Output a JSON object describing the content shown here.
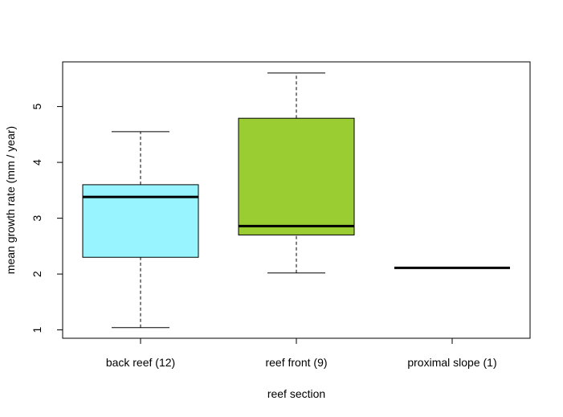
{
  "chart_data": {
    "type": "boxplot",
    "title": "",
    "xlabel": "reef section",
    "ylabel": "mean growth rate (mm / year)",
    "ylim": [
      0.85,
      5.8
    ],
    "yticks": [
      1,
      2,
      3,
      4,
      5
    ],
    "grid": false,
    "categories": [
      "back reef (12)",
      "reef front (9)",
      "proximal slope (1)"
    ],
    "boxes": [
      {
        "category": "back reef (12)",
        "whisker_low": 1.04,
        "q1": 2.3,
        "median": 3.38,
        "q3": 3.6,
        "whisker_high": 4.55,
        "color": "#98F5FF"
      },
      {
        "category": "reef front (9)",
        "whisker_low": 2.02,
        "q1": 2.7,
        "median": 2.86,
        "q3": 4.79,
        "whisker_high": 5.6,
        "color": "#9ACD32"
      },
      {
        "category": "proximal slope (1)",
        "whisker_low": 2.11,
        "q1": 2.11,
        "median": 2.11,
        "q3": 2.11,
        "whisker_high": 2.11,
        "color": "#FFFFFF"
      }
    ]
  }
}
